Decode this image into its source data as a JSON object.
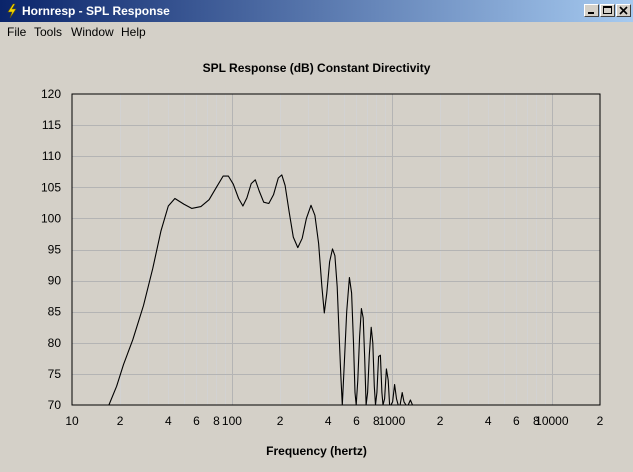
{
  "window": {
    "title": "Hornresp - SPL Response"
  },
  "menu": [
    "File",
    "Tools",
    "Window",
    "Help"
  ],
  "chart_data": {
    "type": "line",
    "title": "SPL Response (dB)   Constant Directivity",
    "xlabel": "Frequency (hertz)",
    "ylabel": "",
    "xscale": "log",
    "xlim": [
      10,
      20000
    ],
    "ylim": [
      70,
      120
    ],
    "grid": true,
    "yticks": [
      120,
      115,
      110,
      105,
      100,
      95,
      90,
      85,
      80,
      75,
      70
    ],
    "xtick_labels": [
      {
        "f": 10,
        "label": "10"
      },
      {
        "f": 20,
        "label": "2"
      },
      {
        "f": 40,
        "label": "4"
      },
      {
        "f": 60,
        "label": "6"
      },
      {
        "f": 80,
        "label": "8"
      },
      {
        "f": 100,
        "label": "100"
      },
      {
        "f": 200,
        "label": "2"
      },
      {
        "f": 400,
        "label": "4"
      },
      {
        "f": 600,
        "label": "6"
      },
      {
        "f": 800,
        "label": "8"
      },
      {
        "f": 1000,
        "label": "1000"
      },
      {
        "f": 2000,
        "label": "2"
      },
      {
        "f": 4000,
        "label": "4"
      },
      {
        "f": 6000,
        "label": "6"
      },
      {
        "f": 8000,
        "label": "8"
      },
      {
        "f": 10000,
        "label": "10000"
      },
      {
        "f": 20000,
        "label": "2"
      }
    ],
    "series": [
      {
        "points": [
          [
            17,
            70
          ],
          [
            19,
            73
          ],
          [
            21,
            76.5
          ],
          [
            24,
            80.5
          ],
          [
            28,
            86
          ],
          [
            32,
            92
          ],
          [
            36,
            98
          ],
          [
            40,
            102
          ],
          [
            44,
            103.2
          ],
          [
            50,
            102.3
          ],
          [
            56,
            101.6
          ],
          [
            64,
            101.9
          ],
          [
            72,
            103
          ],
          [
            80,
            105
          ],
          [
            88,
            106.8
          ],
          [
            95,
            106.8
          ],
          [
            102,
            105.5
          ],
          [
            110,
            103.2
          ],
          [
            117,
            102
          ],
          [
            124,
            103.3
          ],
          [
            132,
            105.6
          ],
          [
            140,
            106.2
          ],
          [
            148,
            104.4
          ],
          [
            158,
            102.6
          ],
          [
            170,
            102.4
          ],
          [
            182,
            103.8
          ],
          [
            195,
            106.5
          ],
          [
            205,
            107
          ],
          [
            215,
            105.3
          ],
          [
            228,
            101
          ],
          [
            242,
            97
          ],
          [
            258,
            95.3
          ],
          [
            275,
            96.8
          ],
          [
            292,
            100
          ],
          [
            312,
            102.1
          ],
          [
            330,
            100.5
          ],
          [
            348,
            96
          ],
          [
            365,
            89
          ],
          [
            378,
            84.8
          ],
          [
            392,
            88
          ],
          [
            408,
            93
          ],
          [
            425,
            95.1
          ],
          [
            440,
            94
          ],
          [
            455,
            89
          ],
          [
            468,
            81
          ],
          [
            480,
            74.5
          ],
          [
            490,
            70
          ],
          [
            505,
            77
          ],
          [
            522,
            85
          ],
          [
            542,
            90.5
          ],
          [
            560,
            88
          ],
          [
            575,
            80
          ],
          [
            588,
            72
          ],
          [
            598,
            69
          ],
          [
            612,
            74
          ],
          [
            628,
            81
          ],
          [
            645,
            85.5
          ],
          [
            662,
            84
          ],
          [
            676,
            77.5
          ],
          [
            690,
            70
          ],
          [
            705,
            72
          ],
          [
            722,
            78
          ],
          [
            742,
            82.5
          ],
          [
            760,
            80
          ],
          [
            776,
            73
          ],
          [
            790,
            68
          ],
          [
            806,
            72
          ],
          [
            826,
            77.8
          ],
          [
            848,
            78
          ],
          [
            866,
            72
          ],
          [
            880,
            67
          ],
          [
            900,
            71
          ],
          [
            924,
            75.8
          ],
          [
            948,
            74
          ],
          [
            968,
            69
          ],
          [
            985,
            67
          ],
          [
            1010,
            70.5
          ],
          [
            1040,
            73.3
          ],
          [
            1068,
            71
          ],
          [
            1095,
            67
          ],
          [
            1125,
            69.5
          ],
          [
            1160,
            72
          ],
          [
            1190,
            70.5
          ],
          [
            1225,
            67
          ],
          [
            1265,
            69
          ],
          [
            1305,
            70.8
          ],
          [
            1345,
            69.5
          ],
          [
            1390,
            67
          ],
          [
            1435,
            68.5
          ],
          [
            1480,
            70
          ]
        ]
      }
    ]
  }
}
